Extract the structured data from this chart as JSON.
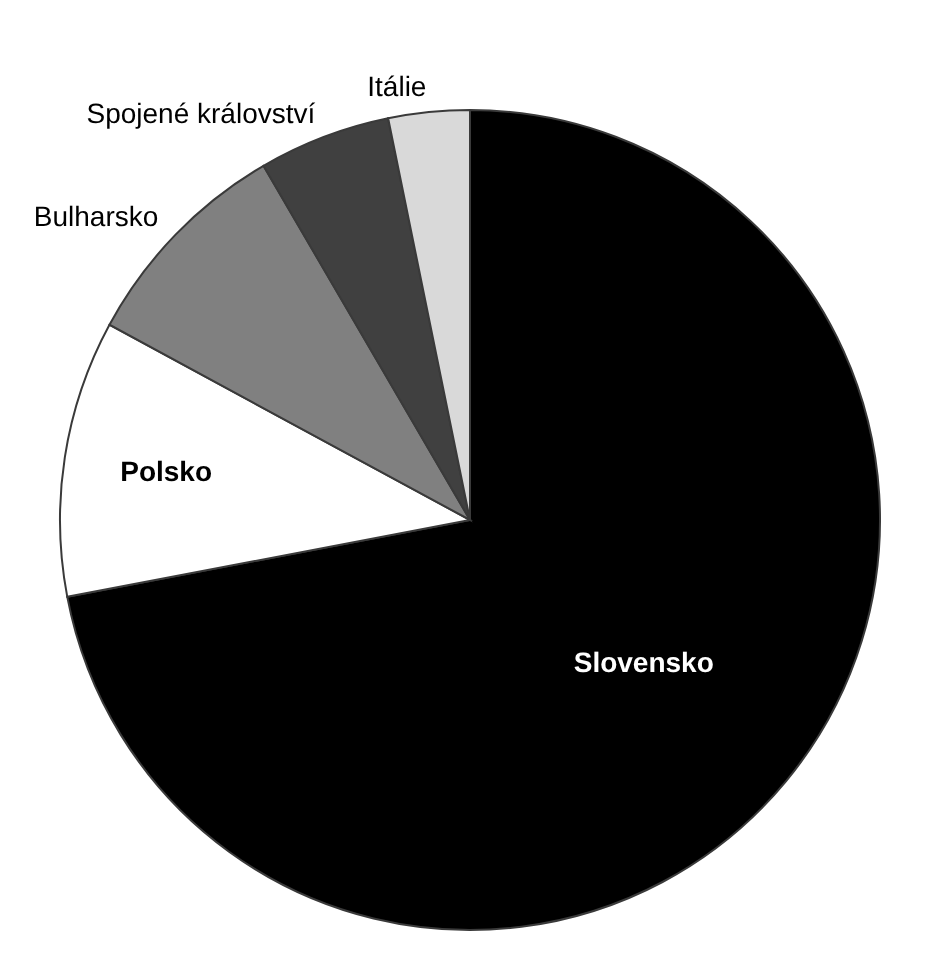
{
  "chart_data": {
    "type": "pie",
    "categories": [
      "Slovensko",
      "Polsko",
      "Bulharsko",
      "Spojené království",
      "Itálie"
    ],
    "values": [
      72.0,
      10.9,
      8.7,
      5.2,
      3.2
    ],
    "colors": [
      "#000000",
      "#ffffff",
      "#808080",
      "#404040",
      "#d9d9d9"
    ],
    "legend": false
  }
}
